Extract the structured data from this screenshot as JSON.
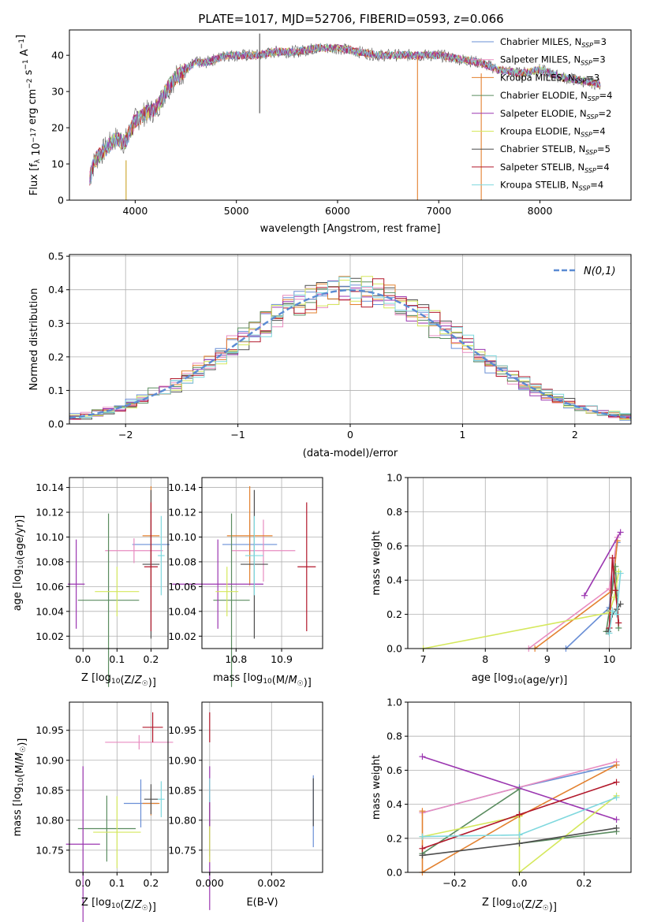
{
  "figure_title": "PLATE=1017, MJD=52706, FIBERID=0593, z=0.066",
  "models": [
    {
      "name": "Chabrier MILES",
      "nssp": "3",
      "color": "#6a8fd6"
    },
    {
      "name": "Salpeter MILES",
      "nssp": "3",
      "color": "#e88cc0"
    },
    {
      "name": "Kroupa MILES",
      "nssp": "3",
      "color": "#e3812f"
    },
    {
      "name": "Chabrier ELODIE",
      "nssp": "4",
      "color": "#5a8c5f"
    },
    {
      "name": "Salpeter ELODIE",
      "nssp": "2",
      "color": "#9b36b0"
    },
    {
      "name": "Kroupa ELODIE",
      "nssp": "4",
      "color": "#d5e85c"
    },
    {
      "name": "Chabrier STELIB",
      "nssp": "5",
      "color": "#4d4d4d"
    },
    {
      "name": "Salpeter STELIB",
      "nssp": "4",
      "color": "#b2182b"
    },
    {
      "name": "Kroupa STELIB",
      "nssp": "4",
      "color": "#7fd8de"
    }
  ],
  "chart_data": [
    {
      "id": "spectrum",
      "type": "line",
      "title": "PLATE=1017, MJD=52706, FIBERID=0593, z=0.066",
      "xlabel": "wavelength [Angstrom, rest frame]",
      "ylabel": "Flux [f_λ 10^-17 erg cm^-2 s^-1 A^-1]",
      "xlim": [
        3350,
        8900
      ],
      "ylim": [
        0,
        47
      ],
      "xticks": [
        4000,
        5000,
        6000,
        7000,
        8000
      ],
      "yticks": [
        0,
        10,
        20,
        30,
        40
      ],
      "legend_position": "top-right",
      "x": [
        3550,
        3600,
        3700,
        3800,
        3900,
        4000,
        4100,
        4200,
        4300,
        4400,
        4500,
        4600,
        4700,
        4800,
        4900,
        5000,
        5200,
        5400,
        5600,
        5800,
        6000,
        6200,
        6400,
        6600,
        6800,
        7000,
        7200,
        7400,
        7600,
        7800,
        8000,
        8200,
        8400,
        8600
      ],
      "y": [
        6,
        11,
        14,
        17,
        16,
        22,
        24,
        25,
        30,
        34,
        36,
        38,
        38,
        39,
        40,
        40,
        40,
        41,
        41,
        42,
        42,
        41,
        40,
        40,
        40,
        40,
        39,
        38,
        36,
        35,
        36,
        34,
        33,
        32
      ],
      "artifacts": [
        {
          "x": 3910,
          "y_from": 0,
          "y_to": 11
        },
        {
          "x": 5230,
          "y_from": 24,
          "y_to": 46
        },
        {
          "x": 6790,
          "y_from": 0,
          "y_to": 40
        },
        {
          "x": 7420,
          "y_from": 0,
          "y_to": 35
        }
      ]
    },
    {
      "id": "residuals",
      "type": "histogram",
      "xlabel": "(data-model)/error",
      "ylabel": "Normed distribution",
      "xlim": [
        -2.5,
        2.5
      ],
      "ylim": [
        0,
        0.505
      ],
      "xticks": [
        -2,
        -1,
        0,
        1,
        2
      ],
      "yticks": [
        0.0,
        0.1,
        0.2,
        0.3,
        0.4,
        0.5
      ],
      "reference_label": "N(0,1)",
      "reference_color": "#5b8bd3",
      "bin_width": 0.1,
      "grid": true
    },
    {
      "id": "age_vs_Z",
      "type": "errorbar",
      "xlabel": "Z [log10(Z/Z☉)]",
      "ylabel": "age [log10(age/yr)]",
      "xlim": [
        -0.04,
        0.25
      ],
      "ylim": [
        10.01,
        10.148
      ],
      "xticks": [
        0.0,
        0.1,
        0.2
      ],
      "yticks": [
        10.02,
        10.04,
        10.06,
        10.08,
        10.1,
        10.12,
        10.14
      ],
      "points": [
        {
          "x": 0.2,
          "y": 10.094,
          "xerr": 0.055,
          "yerr": 0.02,
          "model": 0
        },
        {
          "x": 0.15,
          "y": 10.089,
          "xerr": 0.085,
          "yerr": 0.01,
          "model": 1
        },
        {
          "x": 0.2,
          "y": 10.101,
          "xerr": 0.025,
          "yerr": 0.04,
          "model": 2
        },
        {
          "x": 0.075,
          "y": 10.049,
          "xerr": 0.09,
          "yerr": 0.07,
          "model": 3
        },
        {
          "x": -0.02,
          "y": 10.062,
          "xerr": 0.025,
          "yerr": 0.036,
          "model": 4
        },
        {
          "x": 0.1,
          "y": 10.056,
          "xerr": 0.065,
          "yerr": 0.02,
          "model": 5
        },
        {
          "x": 0.2,
          "y": 10.078,
          "xerr": 0.025,
          "yerr": 0.06,
          "model": 6
        },
        {
          "x": 0.2,
          "y": 10.076,
          "xerr": 0.02,
          "yerr": 0.052,
          "model": 7
        },
        {
          "x": 0.23,
          "y": 10.085,
          "xerr": 0.01,
          "yerr": 0.032,
          "model": 8
        }
      ]
    },
    {
      "id": "age_vs_mass",
      "type": "errorbar",
      "xlabel": "mass [log10(M/M☉)]",
      "ylabel": "",
      "xlim": [
        10.725,
        10.99
      ],
      "ylim": [
        10.01,
        10.148
      ],
      "xticks": [
        10.8,
        10.9
      ],
      "yticks": [
        10.02,
        10.04,
        10.06,
        10.08,
        10.1,
        10.12,
        10.14
      ],
      "points": [
        {
          "x": 10.83,
          "y": 10.094,
          "xerr": 0.06,
          "yerr": 0.02,
          "model": 0
        },
        {
          "x": 10.86,
          "y": 10.089,
          "xerr": 0.07,
          "yerr": 0.025,
          "model": 1
        },
        {
          "x": 10.83,
          "y": 10.101,
          "xerr": 0.05,
          "yerr": 0.04,
          "model": 2
        },
        {
          "x": 10.79,
          "y": 10.049,
          "xerr": 0.04,
          "yerr": 0.07,
          "model": 3
        },
        {
          "x": 10.76,
          "y": 10.062,
          "xerr": 0.1,
          "yerr": 0.036,
          "model": 4
        },
        {
          "x": 10.78,
          "y": 10.056,
          "xerr": 0.025,
          "yerr": 0.02,
          "model": 5
        },
        {
          "x": 10.84,
          "y": 10.078,
          "xerr": 0.03,
          "yerr": 0.06,
          "model": 6
        },
        {
          "x": 10.955,
          "y": 10.076,
          "xerr": 0.02,
          "yerr": 0.052,
          "model": 7
        },
        {
          "x": 10.84,
          "y": 10.085,
          "xerr": 0.02,
          "yerr": 0.032,
          "model": 8
        }
      ]
    },
    {
      "id": "weight_vs_age",
      "type": "line",
      "xlabel": "age [log10(age/yr)]",
      "ylabel": "mass weight",
      "xlim": [
        6.75,
        10.35
      ],
      "ylim": [
        0,
        1
      ],
      "xticks": [
        7,
        8,
        9,
        10
      ],
      "yticks": [
        0.0,
        0.2,
        0.4,
        0.6,
        0.8,
        1.0
      ],
      "series": [
        {
          "model": 0,
          "x": [
            9.3,
            10.0,
            10.13
          ],
          "y": [
            0.0,
            0.24,
            0.62
          ]
        },
        {
          "model": 1,
          "x": [
            8.7,
            10.0,
            10.13
          ],
          "y": [
            0.0,
            0.35,
            0.65
          ]
        },
        {
          "model": 2,
          "x": [
            8.8,
            10.05,
            10.13
          ],
          "y": [
            0.0,
            0.34,
            0.63
          ]
        },
        {
          "model": 3,
          "x": [
            9.95,
            10.0,
            10.1,
            10.15
          ],
          "y": [
            0.1,
            0.22,
            0.48,
            0.12
          ]
        },
        {
          "model": 4,
          "x": [
            9.6,
            10.18
          ],
          "y": [
            0.31,
            0.68
          ]
        },
        {
          "model": 5,
          "x": [
            7.0,
            10.0,
            10.08,
            10.15
          ],
          "y": [
            0.0,
            0.21,
            0.3,
            0.45
          ]
        },
        {
          "model": 6,
          "x": [
            9.98,
            10.05,
            10.12,
            10.18
          ],
          "y": [
            0.1,
            0.2,
            0.23,
            0.26
          ]
        },
        {
          "model": 7,
          "x": [
            10.0,
            10.05,
            10.1,
            10.15
          ],
          "y": [
            0.12,
            0.53,
            0.34,
            0.15
          ]
        },
        {
          "model": 8,
          "x": [
            10.0,
            10.05,
            10.12,
            10.18
          ],
          "y": [
            0.09,
            0.22,
            0.2,
            0.44
          ]
        }
      ]
    },
    {
      "id": "mass_vs_Z",
      "type": "errorbar",
      "xlabel": "Z [log10(Z/Z☉)]",
      "ylabel": "mass [log10(M/M☉)]",
      "xlim": [
        -0.04,
        0.25
      ],
      "ylim": [
        10.713,
        10.997
      ],
      "xticks": [
        0.0,
        0.1,
        0.2
      ],
      "yticks": [
        10.75,
        10.8,
        10.85,
        10.9,
        10.95
      ],
      "points": [
        {
          "x": 0.17,
          "y": 10.828,
          "xerr": 0.05,
          "yerr": 0.04,
          "model": 0
        },
        {
          "x": 0.165,
          "y": 10.93,
          "xerr": 0.1,
          "yerr": 0.012,
          "model": 1
        },
        {
          "x": 0.2,
          "y": 10.828,
          "xerr": 0.025,
          "yerr": 0.02,
          "model": 2
        },
        {
          "x": 0.07,
          "y": 10.786,
          "xerr": 0.085,
          "yerr": 0.055,
          "model": 3
        },
        {
          "x": 0.0,
          "y": 10.76,
          "xerr": 0.05,
          "yerr": 0.13,
          "model": 4
        },
        {
          "x": 0.1,
          "y": 10.78,
          "xerr": 0.07,
          "yerr": 0.06,
          "model": 5
        },
        {
          "x": 0.2,
          "y": 10.835,
          "xerr": 0.02,
          "yerr": 0.025,
          "model": 6
        },
        {
          "x": 0.205,
          "y": 10.955,
          "xerr": 0.03,
          "yerr": 0.025,
          "model": 7
        },
        {
          "x": 0.23,
          "y": 10.835,
          "xerr": 0.01,
          "yerr": 0.03,
          "model": 8
        }
      ]
    },
    {
      "id": "mass_vs_ebv",
      "type": "errorbar",
      "xlabel": "E(B-V)",
      "ylabel": "",
      "xlim": [
        -0.00025,
        0.00365
      ],
      "ylim": [
        10.713,
        10.997
      ],
      "xticks": [
        0.0,
        0.002
      ],
      "yticks": [
        10.75,
        10.8,
        10.85,
        10.9,
        10.95
      ],
      "points": [
        {
          "x": 0.00335,
          "y": 10.815,
          "xerr": 0,
          "yerr": 0.06,
          "model": 0
        },
        {
          "x": 0.0,
          "y": 10.81,
          "xerr": 0,
          "yerr": 0.06,
          "model": 1
        },
        {
          "x": 0.0,
          "y": 10.82,
          "xerr": 0,
          "yerr": 0.05,
          "model": 2
        },
        {
          "x": 0.0,
          "y": 10.79,
          "xerr": 0,
          "yerr": 0.05,
          "model": 3
        },
        {
          "x": 0.0,
          "y": 10.77,
          "xerr": 0,
          "yerr": 0.12,
          "model": 4
        },
        {
          "x": 0.0,
          "y": 10.76,
          "xerr": 0,
          "yerr": 0.03,
          "model": 5
        },
        {
          "x": 0.00335,
          "y": 10.83,
          "xerr": 0,
          "yerr": 0.04,
          "model": 6
        },
        {
          "x": 0.0,
          "y": 10.955,
          "xerr": 0,
          "yerr": 0.025,
          "model": 7
        },
        {
          "x": 0.0,
          "y": 10.85,
          "xerr": 0,
          "yerr": 0.02,
          "model": 8
        }
      ]
    },
    {
      "id": "weight_vs_Z",
      "type": "line",
      "xlabel": "Z [log10(Z/Z☉)]",
      "ylabel": "mass weight",
      "xlim": [
        -0.345,
        0.345
      ],
      "ylim": [
        0,
        1
      ],
      "xticks": [
        -0.2,
        0.0,
        0.2
      ],
      "yticks": [
        0.0,
        0.2,
        0.4,
        0.6,
        0.8,
        1.0
      ],
      "series": [
        {
          "model": 0,
          "x": [
            -0.3,
            0.0,
            0.3
          ],
          "y": [
            0.35,
            0.5,
            0.63
          ]
        },
        {
          "model": 1,
          "x": [
            -0.3,
            0.3
          ],
          "y": [
            0.35,
            0.65
          ]
        },
        {
          "model": 2,
          "x": [
            -0.3,
            -0.3,
            0.0,
            0.3
          ],
          "y": [
            0.36,
            0.0,
            0.33,
            0.63
          ]
        },
        {
          "model": 3,
          "x": [
            -0.3,
            0.0,
            0.0,
            0.3
          ],
          "y": [
            0.11,
            0.49,
            0.17,
            0.24
          ]
        },
        {
          "model": 4,
          "x": [
            -0.3,
            0.3
          ],
          "y": [
            0.68,
            0.31
          ]
        },
        {
          "model": 5,
          "x": [
            -0.3,
            0.0,
            0.0,
            0.3
          ],
          "y": [
            0.21,
            0.33,
            0.0,
            0.45
          ]
        },
        {
          "model": 6,
          "x": [
            -0.3,
            0.0,
            0.3
          ],
          "y": [
            0.1,
            0.17,
            0.26
          ]
        },
        {
          "model": 7,
          "x": [
            -0.3,
            0.0,
            0.3
          ],
          "y": [
            0.14,
            0.34,
            0.53
          ]
        },
        {
          "model": 8,
          "x": [
            -0.3,
            0.0,
            0.3
          ],
          "y": [
            0.21,
            0.22,
            0.44
          ]
        }
      ]
    }
  ]
}
